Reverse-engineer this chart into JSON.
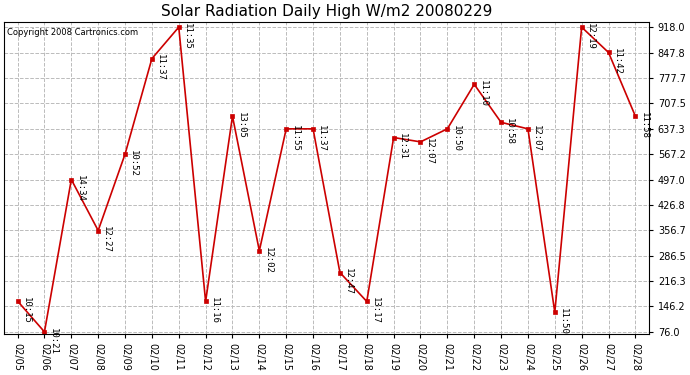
{
  "title": "Solar Radiation Daily High W/m2 20080229",
  "copyright": "Copyright 2008 Cartronics.com",
  "dates": [
    "02/05",
    "02/06",
    "02/07",
    "02/08",
    "02/09",
    "02/10",
    "02/11",
    "02/12",
    "02/13",
    "02/14",
    "02/15",
    "02/16",
    "02/17",
    "02/18",
    "02/19",
    "02/20",
    "02/21",
    "02/22",
    "02/23",
    "02/24",
    "02/25",
    "02/26",
    "02/27",
    "02/28"
  ],
  "values": [
    161,
    76,
    497,
    356,
    567,
    831,
    918,
    160,
    672,
    300,
    637,
    637,
    240,
    160,
    613,
    601,
    637,
    760,
    655,
    637,
    130,
    918,
    848,
    672
  ],
  "time_labels": [
    "10:15",
    "10:21",
    "14:34",
    "12:27",
    "10:52",
    "11:37",
    "11:35",
    "11:16",
    "13:05",
    "12:02",
    "11:55",
    "11:37",
    "12:47",
    "13:17",
    "12:31",
    "12:07",
    "10:50",
    "11:10",
    "10:58",
    "12:07",
    "11:50",
    "12:19",
    "11:42",
    "11:58"
  ],
  "yticks": [
    76.0,
    146.2,
    216.3,
    286.5,
    356.7,
    426.8,
    497.0,
    567.2,
    637.3,
    707.5,
    777.7,
    847.8,
    918.0
  ],
  "ymin": 76.0,
  "ymax": 918.0,
  "line_color": "#cc0000",
  "marker_color": "#cc0000",
  "bg_color": "#ffffff",
  "grid_color": "#bbbbbb",
  "title_fontsize": 11,
  "copyright_fontsize": 6,
  "tick_fontsize": 7,
  "annotation_fontsize": 6.5
}
